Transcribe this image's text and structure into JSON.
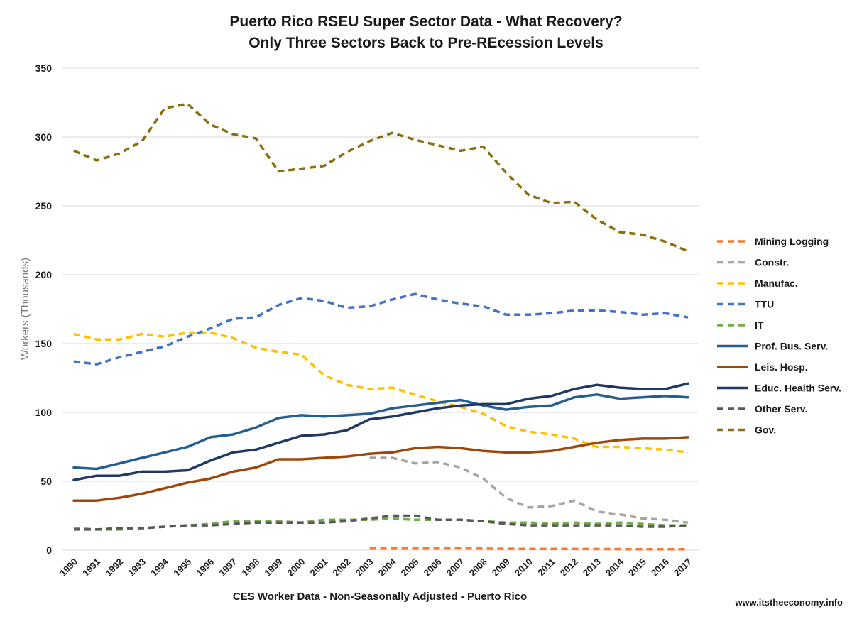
{
  "chart_data": {
    "type": "line",
    "title_line1": "Puerto Rico  RSEU Super Sector Data - What Recovery?",
    "title_line2": "Only Three Sectors Back to Pre-REcession Levels",
    "ylabel": "Workers (Thousands)",
    "xlabel": "CES Worker Data - Non-Seasonally Adjusted -  Puerto Rico",
    "source": "www.itstheeconomy.info",
    "ylim": [
      0,
      350
    ],
    "yticks": [
      0,
      50,
      100,
      150,
      200,
      250,
      300,
      350
    ],
    "grid": "horizontal",
    "legend_position": "right",
    "x": [
      "1990",
      "1991",
      "1992",
      "1993",
      "1994",
      "1995",
      "1996",
      "1997",
      "1998",
      "1999",
      "2000",
      "2001",
      "2002",
      "2003",
      "2004",
      "2005",
      "2006",
      "2007",
      "2008",
      "2009",
      "2010",
      "2011",
      "2012",
      "2013",
      "2014",
      "2015",
      "2016",
      "2017"
    ],
    "series": [
      {
        "name": "Mining Logging",
        "color": "#ed7d31",
        "dashed": true,
        "values": [
          null,
          null,
          null,
          null,
          null,
          null,
          null,
          null,
          null,
          null,
          null,
          null,
          null,
          1.2,
          1.2,
          1.2,
          1.2,
          1.3,
          1.1,
          1.0,
          0.9,
          0.9,
          0.9,
          0.8,
          0.7,
          0.6,
          0.6,
          0.6
        ]
      },
      {
        "name": "Constr.",
        "color": "#a5a5a5",
        "dashed": true,
        "values": [
          null,
          null,
          null,
          null,
          null,
          null,
          null,
          null,
          null,
          null,
          null,
          null,
          null,
          67,
          67,
          63,
          64,
          60,
          52,
          38,
          31,
          32,
          36,
          28,
          26,
          23,
          22,
          20
        ]
      },
      {
        "name": "Manufac.",
        "color": "#ffc000",
        "dashed": true,
        "values": [
          157,
          153,
          153,
          157,
          155,
          158,
          158,
          154,
          147,
          144,
          142,
          127,
          120,
          117,
          118,
          113,
          108,
          104,
          99,
          90,
          86,
          84,
          81,
          75,
          75,
          74,
          73,
          71
        ]
      },
      {
        "name": "TTU",
        "color": "#4472c4",
        "dashed": true,
        "values": [
          137,
          135,
          140,
          144,
          148,
          155,
          161,
          168,
          169,
          178,
          183,
          181,
          176,
          177,
          182,
          186,
          182,
          179,
          177,
          171,
          171,
          172,
          174,
          174,
          173,
          171,
          172,
          169
        ]
      },
      {
        "name": "IT",
        "color": "#70ad47",
        "dashed": true,
        "values": [
          16,
          15,
          15,
          16,
          17,
          18,
          19,
          21,
          21,
          21,
          20,
          22,
          22,
          22,
          23,
          22,
          22,
          22,
          21,
          20,
          20,
          19,
          20,
          19,
          20,
          19,
          18,
          18
        ]
      },
      {
        "name": "Prof. Bus. Serv.",
        "color": "#255e91",
        "dashed": false,
        "values": [
          60,
          59,
          63,
          67,
          71,
          75,
          82,
          84,
          89,
          96,
          98,
          97,
          98,
          99,
          103,
          105,
          107,
          109,
          105,
          102,
          104,
          105,
          111,
          113,
          110,
          111,
          112,
          111
        ]
      },
      {
        "name": "Leis. Hosp.",
        "color": "#9e480e",
        "dashed": false,
        "values": [
          36,
          36,
          38,
          41,
          45,
          49,
          52,
          57,
          60,
          66,
          66,
          67,
          68,
          70,
          71,
          74,
          75,
          74,
          72,
          71,
          71,
          72,
          75,
          78,
          80,
          81,
          81,
          82
        ]
      },
      {
        "name": "Educ. Health Serv.",
        "color": "#1f3864",
        "dashed": false,
        "values": [
          51,
          54,
          54,
          57,
          57,
          58,
          65,
          71,
          73,
          78,
          83,
          84,
          87,
          95,
          97,
          100,
          103,
          105,
          106,
          106,
          110,
          112,
          117,
          120,
          118,
          117,
          117,
          121
        ]
      },
      {
        "name": "Other Serv.",
        "color": "#595959",
        "dashed": true,
        "values": [
          15,
          15,
          16,
          16,
          17,
          18,
          18,
          19,
          20,
          20,
          20,
          20,
          21,
          23,
          25,
          25,
          22,
          22,
          21,
          19,
          18,
          18,
          18,
          18,
          18,
          17,
          17,
          18
        ]
      },
      {
        "name": "Gov.",
        "color": "#8b6f0e",
        "dashed": true,
        "values": [
          290,
          283,
          288,
          297,
          321,
          324,
          309,
          302,
          299,
          275,
          277,
          279,
          289,
          297,
          303,
          298,
          294,
          290,
          293,
          274,
          258,
          252,
          253,
          240,
          231,
          229,
          224,
          217
        ]
      }
    ]
  }
}
